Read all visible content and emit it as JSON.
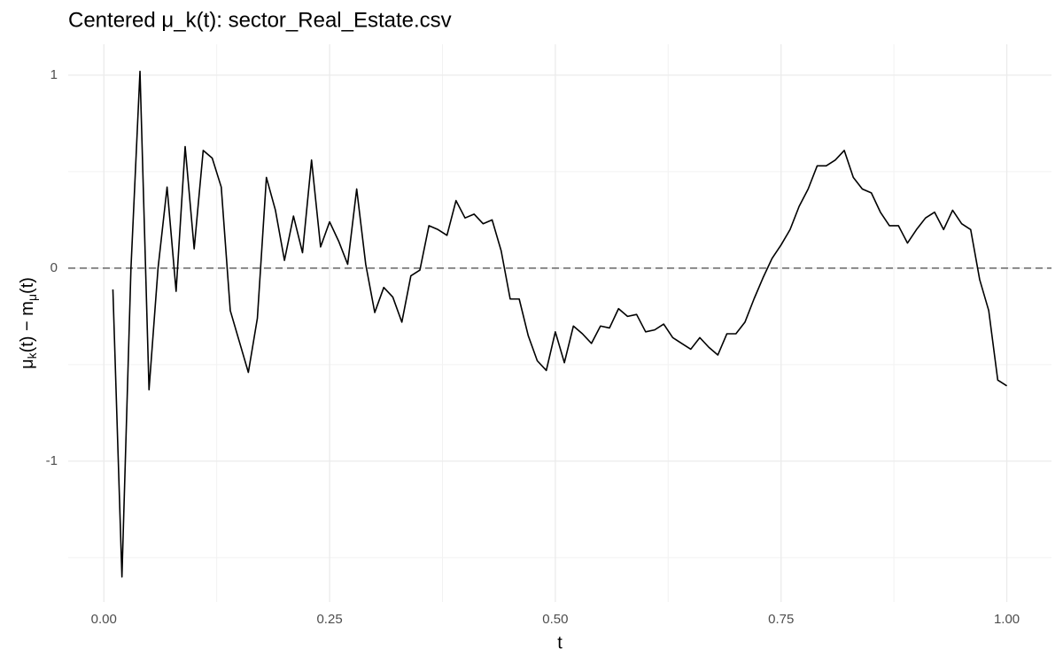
{
  "chart_data": {
    "type": "line",
    "title": "Centered μ_k(t): sector_Real_Estate.csv",
    "xlabel": "t",
    "ylabel_parts": [
      "μ",
      "k",
      "(t) − m",
      "μ",
      "(t)"
    ],
    "x": [
      0.01,
      0.02,
      0.03,
      0.04,
      0.05,
      0.06,
      0.07,
      0.08,
      0.09,
      0.1,
      0.11,
      0.12,
      0.13,
      0.14,
      0.15,
      0.16,
      0.17,
      0.18,
      0.19,
      0.2,
      0.21,
      0.22,
      0.23,
      0.24,
      0.25,
      0.26,
      0.27,
      0.28,
      0.29,
      0.3,
      0.31,
      0.32,
      0.33,
      0.34,
      0.35,
      0.36,
      0.37,
      0.38,
      0.39,
      0.4,
      0.41,
      0.42,
      0.43,
      0.44,
      0.45,
      0.46,
      0.47,
      0.48,
      0.49,
      0.5,
      0.51,
      0.52,
      0.53,
      0.54,
      0.55,
      0.56,
      0.57,
      0.58,
      0.59,
      0.6,
      0.61,
      0.62,
      0.63,
      0.64,
      0.65,
      0.66,
      0.67,
      0.68,
      0.69,
      0.7,
      0.71,
      0.72,
      0.73,
      0.74,
      0.75,
      0.76,
      0.77,
      0.78,
      0.79,
      0.8,
      0.81,
      0.82,
      0.83,
      0.84,
      0.85,
      0.86,
      0.87,
      0.88,
      0.89,
      0.9,
      0.91,
      0.92,
      0.93,
      0.94,
      0.95,
      0.96,
      0.97,
      0.98,
      0.99,
      1.0
    ],
    "series": [
      {
        "color": "#000000",
        "values": [
          -0.11,
          -1.6,
          0.0,
          1.02,
          -0.63,
          0.0,
          0.42,
          -0.12,
          0.63,
          0.1,
          0.61,
          0.57,
          0.42,
          -0.22,
          -0.38,
          -0.54,
          -0.26,
          0.47,
          0.3,
          0.04,
          0.27,
          0.08,
          0.56,
          0.11,
          0.24,
          0.14,
          0.02,
          0.41,
          0.02,
          -0.23,
          -0.1,
          -0.15,
          -0.28,
          -0.04,
          -0.01,
          0.22,
          0.2,
          0.17,
          0.35,
          0.26,
          0.28,
          0.23,
          0.25,
          0.09,
          -0.16,
          -0.16,
          -0.35,
          -0.48,
          -0.53,
          -0.33,
          -0.49,
          -0.3,
          -0.34,
          -0.39,
          -0.3,
          -0.31,
          -0.21,
          -0.25,
          -0.24,
          -0.33,
          -0.32,
          -0.29,
          -0.36,
          -0.39,
          -0.42,
          -0.36,
          -0.41,
          -0.45,
          -0.34,
          -0.34,
          -0.28,
          -0.16,
          -0.05,
          0.05,
          0.12,
          0.2,
          0.32,
          0.41,
          0.53,
          0.53,
          0.56,
          0.61,
          0.47,
          0.41,
          0.39,
          0.29,
          0.22,
          0.22,
          0.13,
          0.2,
          0.26,
          0.29,
          0.2,
          0.3,
          0.23,
          0.2,
          -0.06,
          -0.22,
          -0.58,
          -0.61
        ]
      }
    ],
    "xlim": [
      -0.0395,
      1.0495
    ],
    "ylim": [
      -1.73,
      1.16
    ],
    "xticks": [
      {
        "value": 0,
        "label": "0.00"
      },
      {
        "value": 0.25,
        "label": "0.25"
      },
      {
        "value": 0.5,
        "label": "0.50"
      },
      {
        "value": 0.75,
        "label": "0.75"
      },
      {
        "value": 1,
        "label": "1.00"
      }
    ],
    "yticks": [
      -1,
      0,
      1
    ],
    "x_minor_grid": [
      0.125,
      0.375,
      0.625,
      0.875
    ],
    "y_minor_grid": [
      -1.5,
      -0.5,
      0.5
    ],
    "hline": 0,
    "hline_color": "#666666",
    "grid": true
  }
}
